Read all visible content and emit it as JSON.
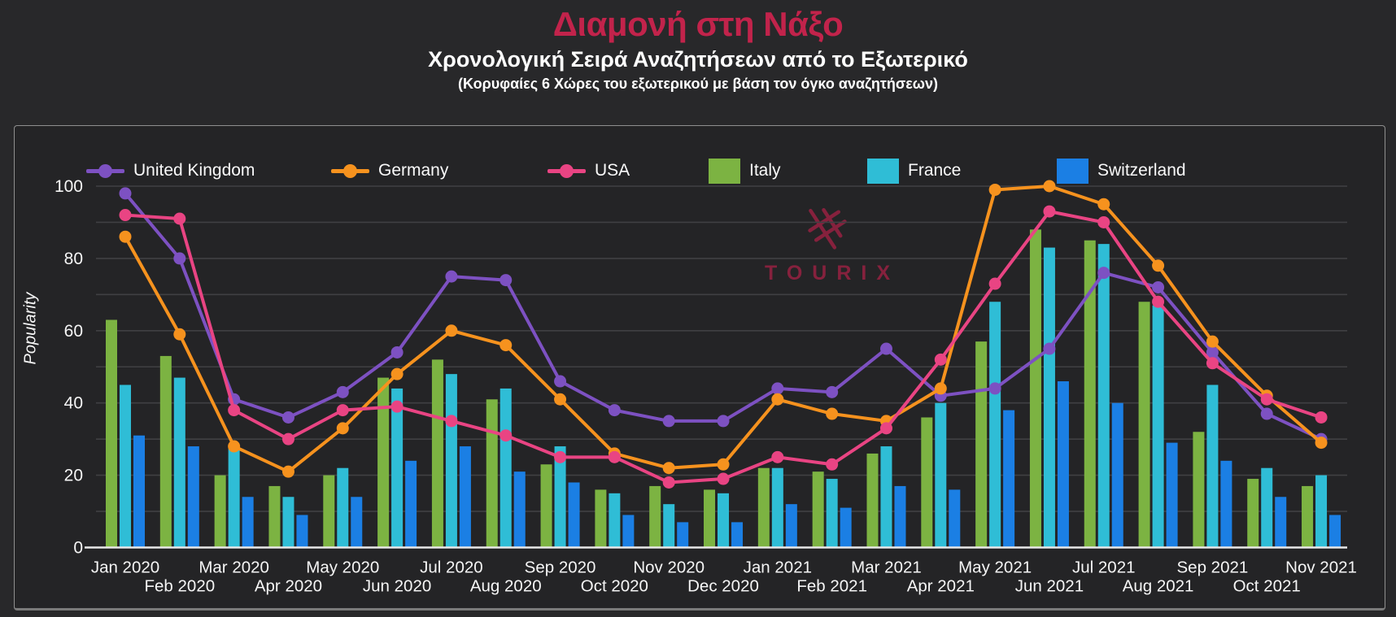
{
  "header": {
    "title": "Διαμονή στη Νάξο",
    "subtitle": "Χρονολογική Σειρά Αναζητήσεων από το Εξωτερικό",
    "note": "(Κορυφαίες 6 Χώρες του εξωτερικού με βάση τον όγκο αναζητήσεων)"
  },
  "watermark": {
    "text": "TOURIX",
    "logo_icon": "tourix-crossed-lines-logo",
    "color": "#9c2143"
  },
  "colors": {
    "page_background": "#28282a",
    "panel_background": "#242426",
    "panel_border": "#8f8f8f",
    "title_accent": "#c2234b",
    "grid": "#404043",
    "axis": "#e8e8e8",
    "text": "#f5f5f5"
  },
  "chart_data": {
    "type": "bar+line",
    "title": "Διαμονή στη Νάξο — Χρονολογική Σειρά Αναζητήσεων από το Εξωτερικό",
    "xlabel": "",
    "ylabel": "Popularity",
    "ylim": [
      0,
      100
    ],
    "yticks": [
      0,
      20,
      40,
      60,
      80,
      100
    ],
    "grid": true,
    "grid_step": 10,
    "legend_position": "top-left",
    "categories": [
      "Jan 2020",
      "Feb 2020",
      "Mar 2020",
      "Apr 2020",
      "May 2020",
      "Jun 2020",
      "Jul 2020",
      "Aug 2020",
      "Sep 2020",
      "Oct 2020",
      "Nov 2020",
      "Dec 2020",
      "Jan 2021",
      "Feb 2021",
      "Mar 2021",
      "Apr 2021",
      "May 2021",
      "Jun 2021",
      "Jul 2021",
      "Aug 2021",
      "Sep 2021",
      "Oct 2021",
      "Nov 2021"
    ],
    "series": [
      {
        "name": "United Kingdom",
        "type": "line",
        "color": "#7d51c2",
        "values": [
          98,
          80,
          41,
          36,
          43,
          54,
          75,
          74,
          46,
          38,
          35,
          35,
          44,
          43,
          55,
          42,
          44,
          55,
          76,
          72,
          54,
          37,
          30
        ]
      },
      {
        "name": "Germany",
        "type": "line",
        "color": "#f6921e",
        "values": [
          86,
          59,
          28,
          21,
          33,
          48,
          60,
          56,
          41,
          26,
          22,
          23,
          41,
          37,
          35,
          44,
          99,
          100,
          95,
          78,
          57,
          42,
          29
        ]
      },
      {
        "name": "USA",
        "type": "line",
        "color": "#e94483",
        "values": [
          92,
          91,
          38,
          30,
          38,
          39,
          35,
          31,
          25,
          25,
          18,
          19,
          25,
          23,
          33,
          52,
          73,
          93,
          90,
          68,
          51,
          41,
          36
        ]
      },
      {
        "name": "Italy",
        "type": "bar",
        "color": "#7cb342",
        "values": [
          63,
          53,
          20,
          17,
          20,
          47,
          52,
          41,
          23,
          16,
          17,
          16,
          22,
          21,
          26,
          36,
          57,
          88,
          85,
          68,
          32,
          19,
          17
        ]
      },
      {
        "name": "France",
        "type": "bar",
        "color": "#2fbdd6",
        "values": [
          45,
          47,
          28,
          14,
          22,
          44,
          48,
          44,
          28,
          15,
          12,
          15,
          22,
          19,
          28,
          40,
          68,
          83,
          84,
          67,
          45,
          22,
          20
        ]
      },
      {
        "name": "Switzerland",
        "type": "bar",
        "color": "#1b7fe4",
        "values": [
          31,
          28,
          14,
          9,
          14,
          24,
          28,
          21,
          18,
          9,
          7,
          7,
          12,
          11,
          17,
          16,
          38,
          46,
          40,
          29,
          24,
          14,
          9
        ]
      }
    ]
  }
}
